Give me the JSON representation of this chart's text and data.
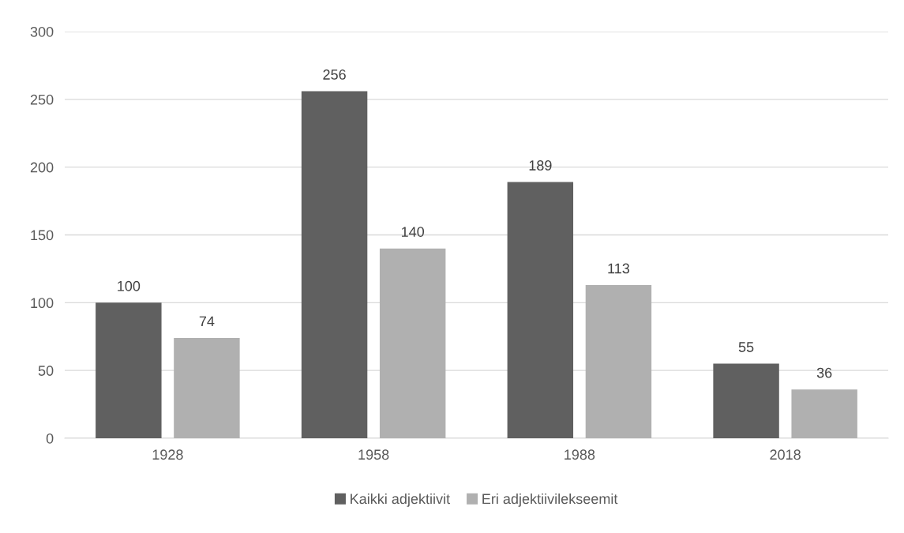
{
  "chart_data": {
    "type": "bar",
    "categories": [
      "1928",
      "1958",
      "1988",
      "2018"
    ],
    "series": [
      {
        "name": "Kaikki adjektiivit",
        "color": "#606060",
        "values": [
          100,
          256,
          189,
          55
        ]
      },
      {
        "name": "Eri adjektiivilekseemit",
        "color": "#b0b0b0",
        "values": [
          74,
          140,
          113,
          36
        ]
      }
    ],
    "ylim": [
      0,
      300
    ],
    "yticks": [
      0,
      50,
      100,
      150,
      200,
      250,
      300
    ],
    "grid": "y",
    "legend": "bottom",
    "data_labels": true
  }
}
